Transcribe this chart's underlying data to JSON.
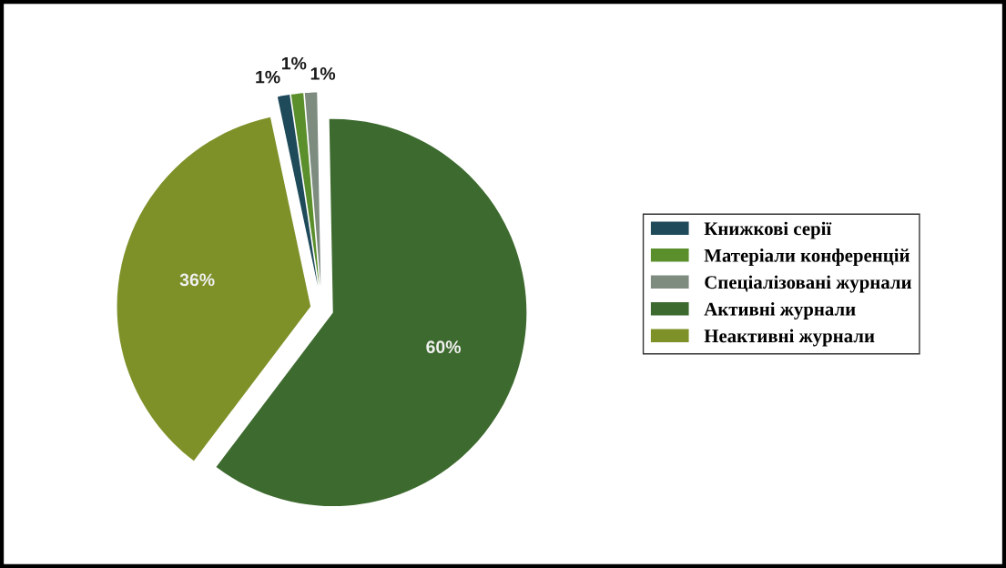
{
  "chart_data": {
    "type": "pie",
    "categories": [
      "Книжкові серії",
      "Матеріали конференцій",
      "Спеціалізовані журнали",
      "Активні журнали",
      "Неактивні журнали"
    ],
    "values": [
      1,
      1,
      1,
      60,
      36
    ],
    "colors": [
      "#1f4a5a",
      "#5b8f2c",
      "#7e8c80",
      "#3d6a2e",
      "#7e9128"
    ],
    "value_labels": [
      "1%",
      "1%",
      "1%",
      "60%",
      "36%"
    ],
    "legend": "right"
  }
}
